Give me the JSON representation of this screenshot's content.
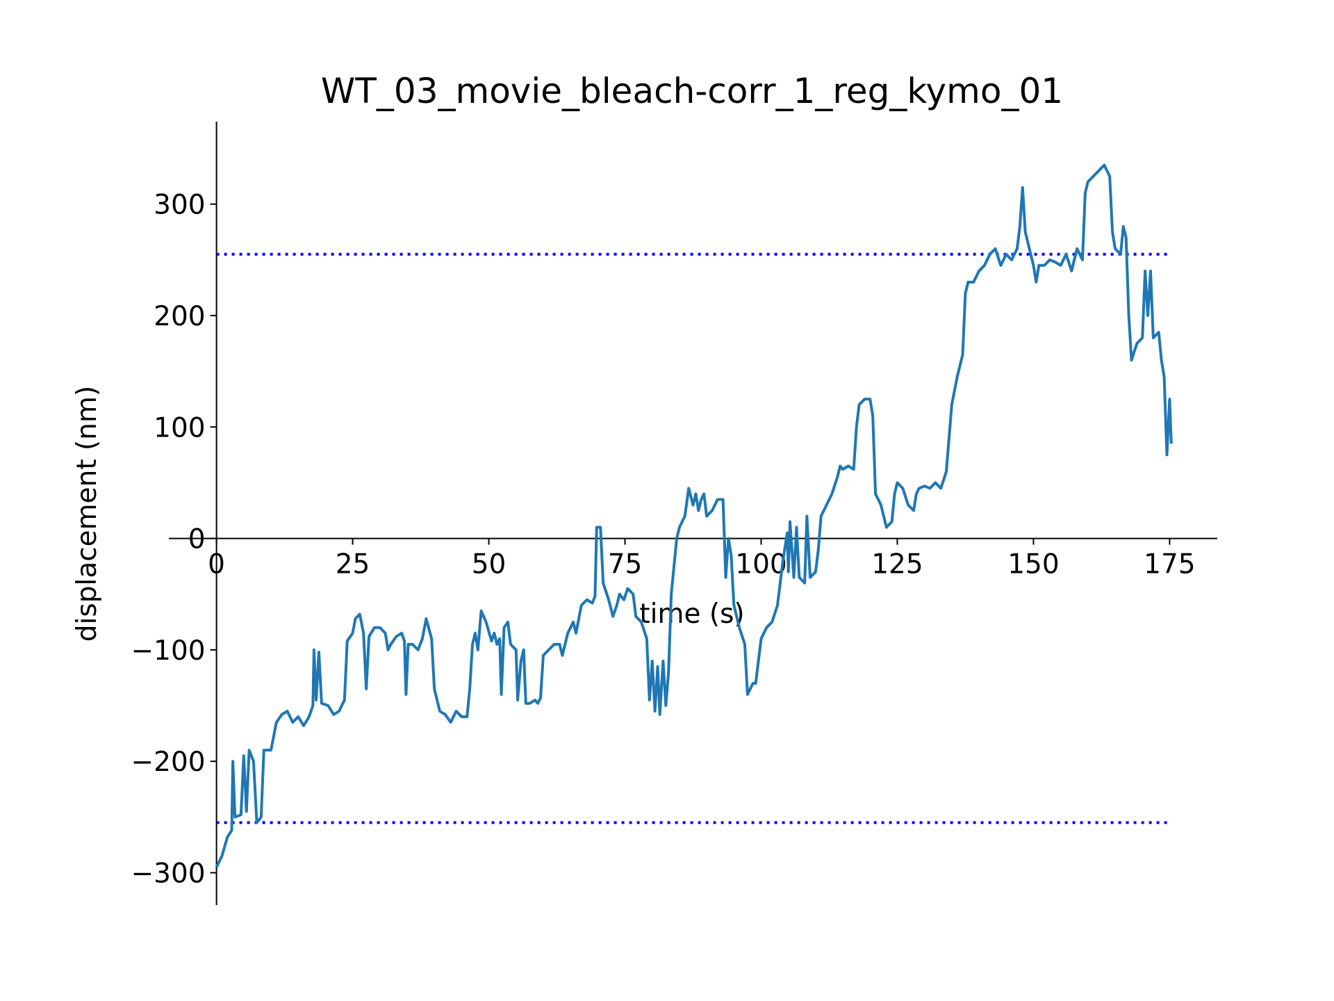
{
  "chart_data": {
    "type": "line",
    "title": "WT_03_movie_bleach-corr_1_reg_kymo_01",
    "xlabel": "time (s)",
    "ylabel": "displacement (nm)",
    "xlim": [
      -8.75,
      183.75
    ],
    "ylim": [
      -329,
      374
    ],
    "xticks": [
      0,
      25,
      50,
      75,
      100,
      125,
      150,
      175
    ],
    "yticks": [
      {
        "value": -300,
        "label": "−300"
      },
      {
        "value": -200,
        "label": "−200"
      },
      {
        "value": -100,
        "label": "−100"
      },
      0,
      100,
      200,
      300
    ],
    "hlines": [
      {
        "value": 255,
        "color": "#0000ff",
        "style": "dotted"
      },
      {
        "value": -255,
        "color": "#0000ff",
        "style": "dotted"
      }
    ],
    "x": [
      0,
      1,
      2,
      2.8,
      3,
      3.4,
      4.5,
      5,
      5.5,
      6,
      6.8,
      7.4,
      8.2,
      8.7,
      10,
      11,
      12,
      13,
      14,
      15,
      16,
      17,
      17.7,
      17.9,
      18.3,
      18.8,
      19.3,
      20.5,
      21.5,
      22.5,
      23.5,
      24,
      25,
      25.5,
      26.3,
      27,
      27.5,
      28,
      29,
      30,
      31,
      31.5,
      32,
      33,
      34,
      34.5,
      34.8,
      35.2,
      36,
      37,
      37.8,
      38.5,
      39.5,
      40,
      41,
      42,
      43,
      44,
      45,
      46,
      46.5,
      47,
      47.5,
      48,
      48.6,
      49.5,
      50.5,
      51,
      51.5,
      52,
      52.3,
      52.8,
      53.5,
      54,
      55,
      55.3,
      55.9,
      56.4,
      56.8,
      57.5,
      58.5,
      59,
      59.5,
      60,
      61,
      62,
      63,
      63.5,
      64.5,
      65.5,
      66,
      67,
      68,
      69,
      69.5,
      69.8,
      70.5,
      71,
      72,
      72.8,
      73.5,
      74,
      74.8,
      75.5,
      76.5,
      77,
      78,
      79,
      79.5,
      80,
      80.5,
      81,
      81.4,
      82,
      82.5,
      83,
      83.5,
      84,
      84.5,
      85,
      86,
      86.7,
      87.5,
      88,
      88.5,
      89,
      89.5,
      90,
      91,
      92,
      93,
      93.5,
      94,
      94.5,
      95,
      96,
      97,
      97.5,
      98.5,
      99,
      100,
      101,
      102,
      103,
      104,
      104.8,
      105,
      105.3,
      106,
      106.5,
      107,
      108,
      108.4,
      109,
      110,
      110.5,
      111,
      112,
      113,
      114,
      114.5,
      115,
      116,
      117,
      117.5,
      118,
      119,
      120,
      120.5,
      121,
      122,
      123,
      124,
      124.5,
      125,
      126,
      127,
      128,
      128.5,
      129,
      130,
      131,
      132,
      133,
      134,
      135,
      136,
      137,
      137.5,
      138,
      139,
      140,
      141,
      142,
      143,
      144,
      145,
      146,
      147,
      147.5,
      148,
      148.5,
      149,
      150,
      150.5,
      151,
      152,
      153,
      154,
      155,
      156,
      157,
      158,
      159,
      159.5,
      160,
      161,
      162,
      163,
      164,
      164.5,
      165,
      166,
      166.5,
      167,
      167.5,
      168,
      169,
      170,
      170.5,
      171,
      171.5,
      172,
      173,
      173.5,
      174,
      174.5,
      175,
      175.3
    ],
    "series": [
      {
        "color": "#1f77b4",
        "values": [
          -295,
          -285,
          -268,
          -262,
          -200,
          -250,
          -248,
          -195,
          -245,
          -190,
          -200,
          -255,
          -250,
          -190,
          -190,
          -165,
          -158,
          -155,
          -165,
          -160,
          -168,
          -160,
          -150,
          -100,
          -145,
          -102,
          -148,
          -150,
          -158,
          -155,
          -145,
          -92,
          -85,
          -72,
          -68,
          -85,
          -135,
          -88,
          -80,
          -80,
          -85,
          -100,
          -95,
          -88,
          -85,
          -92,
          -140,
          -95,
          -95,
          -100,
          -90,
          -72,
          -90,
          -135,
          -155,
          -158,
          -165,
          -155,
          -160,
          -160,
          -135,
          -95,
          -85,
          -100,
          -65,
          -75,
          -92,
          -85,
          -95,
          -90,
          -140,
          -80,
          -75,
          -95,
          -100,
          -145,
          -110,
          -100,
          -148,
          -148,
          -145,
          -148,
          -143,
          -105,
          -100,
          -95,
          -95,
          -105,
          -85,
          -75,
          -85,
          -60,
          -55,
          -58,
          -52,
          10,
          10,
          -40,
          -55,
          -70,
          -60,
          -50,
          -55,
          -45,
          -50,
          -70,
          -75,
          -90,
          -145,
          -110,
          -155,
          -115,
          -158,
          -110,
          -150,
          -120,
          -50,
          -25,
          0,
          10,
          20,
          45,
          30,
          40,
          25,
          35,
          40,
          20,
          25,
          35,
          35,
          -35,
          0,
          -15,
          -60,
          -80,
          -95,
          -140,
          -130,
          -130,
          -90,
          -80,
          -75,
          -60,
          -20,
          5,
          -30,
          15,
          -35,
          10,
          -35,
          -40,
          20,
          -35,
          -30,
          -10,
          20,
          30,
          40,
          55,
          65,
          62,
          65,
          62,
          100,
          120,
          125,
          125,
          110,
          40,
          30,
          10,
          15,
          40,
          50,
          45,
          30,
          25,
          40,
          45,
          47,
          45,
          50,
          45,
          60,
          120,
          145,
          165,
          220,
          230,
          230,
          240,
          245,
          255,
          260,
          245,
          255,
          250,
          260,
          280,
          315,
          275,
          265,
          245,
          230,
          245,
          245,
          250,
          248,
          245,
          255,
          240,
          260,
          250,
          310,
          320,
          325,
          330,
          335,
          325,
          275,
          260,
          255,
          280,
          270,
          200,
          160,
          175,
          180,
          240,
          200,
          240,
          180,
          185,
          160,
          145,
          75,
          125,
          85
        ]
      }
    ]
  }
}
